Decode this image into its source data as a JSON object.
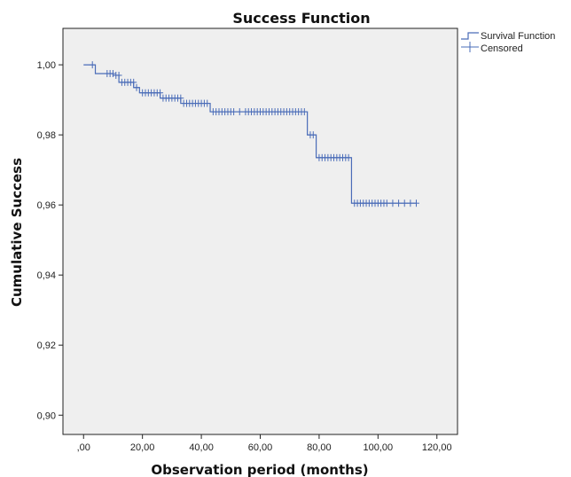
{
  "chart_data": {
    "type": "line",
    "title": "Success Function",
    "xlabel": "Observation period (months)",
    "ylabel": "Cumulative Success",
    "xlim": [
      -7,
      127
    ],
    "ylim": [
      0.8945,
      1.0104
    ],
    "x_ticks": [
      {
        "value": 0,
        "label": ",00"
      },
      {
        "value": 20,
        "label": "20,00"
      },
      {
        "value": 40,
        "label": "40,00"
      },
      {
        "value": 60,
        "label": "60,00"
      },
      {
        "value": 80,
        "label": "80,00"
      },
      {
        "value": 100,
        "label": "100,00"
      },
      {
        "value": 120,
        "label": "120,00"
      }
    ],
    "y_ticks": [
      {
        "value": 0.9,
        "label": "0,90"
      },
      {
        "value": 0.92,
        "label": "0,92"
      },
      {
        "value": 0.94,
        "label": "0,94"
      },
      {
        "value": 0.96,
        "label": "0,96"
      },
      {
        "value": 0.98,
        "label": "0,98"
      },
      {
        "value": 1.0,
        "label": "1,00"
      }
    ],
    "grid": false,
    "legend_position": "top-right",
    "colors": {
      "series": "#4a6cb8",
      "plot_bg": "#efefef",
      "axis": "#222222"
    },
    "series": [
      {
        "name": "Survival Function",
        "kind": "step",
        "x": [
          0,
          4,
          10,
          12,
          17,
          19,
          26,
          33,
          43,
          76,
          79,
          91,
          113
        ],
        "y": [
          1.0,
          0.9975,
          0.997,
          0.995,
          0.9935,
          0.992,
          0.9905,
          0.989,
          0.9866,
          0.98,
          0.9735,
          0.9605,
          0.9605
        ]
      },
      {
        "name": "Censored",
        "kind": "marker",
        "points": [
          [
            3,
            1.0
          ],
          [
            8,
            0.9975
          ],
          [
            9,
            0.9975
          ],
          [
            10,
            0.9975
          ],
          [
            11,
            0.997
          ],
          [
            12,
            0.997
          ],
          [
            13,
            0.995
          ],
          [
            14,
            0.995
          ],
          [
            15,
            0.995
          ],
          [
            16,
            0.995
          ],
          [
            17,
            0.995
          ],
          [
            18,
            0.9935
          ],
          [
            20,
            0.992
          ],
          [
            21,
            0.992
          ],
          [
            22,
            0.992
          ],
          [
            23,
            0.992
          ],
          [
            24,
            0.992
          ],
          [
            25,
            0.992
          ],
          [
            26,
            0.992
          ],
          [
            27,
            0.9905
          ],
          [
            28,
            0.9905
          ],
          [
            29,
            0.9905
          ],
          [
            30,
            0.9905
          ],
          [
            31,
            0.9905
          ],
          [
            32,
            0.9905
          ],
          [
            33,
            0.9905
          ],
          [
            34,
            0.989
          ],
          [
            35,
            0.989
          ],
          [
            36,
            0.989
          ],
          [
            37,
            0.989
          ],
          [
            38,
            0.989
          ],
          [
            39,
            0.989
          ],
          [
            40,
            0.989
          ],
          [
            41,
            0.989
          ],
          [
            42,
            0.989
          ],
          [
            44,
            0.9866
          ],
          [
            45,
            0.9866
          ],
          [
            46,
            0.9866
          ],
          [
            47,
            0.9866
          ],
          [
            48,
            0.9866
          ],
          [
            49,
            0.9866
          ],
          [
            50,
            0.9866
          ],
          [
            51,
            0.9866
          ],
          [
            53,
            0.9866
          ],
          [
            55,
            0.9866
          ],
          [
            56,
            0.9866
          ],
          [
            57,
            0.9866
          ],
          [
            58,
            0.9866
          ],
          [
            59,
            0.9866
          ],
          [
            60,
            0.9866
          ],
          [
            61,
            0.9866
          ],
          [
            62,
            0.9866
          ],
          [
            63,
            0.9866
          ],
          [
            64,
            0.9866
          ],
          [
            65,
            0.9866
          ],
          [
            66,
            0.9866
          ],
          [
            67,
            0.9866
          ],
          [
            68,
            0.9866
          ],
          [
            69,
            0.9866
          ],
          [
            70,
            0.9866
          ],
          [
            71,
            0.9866
          ],
          [
            72,
            0.9866
          ],
          [
            73,
            0.9866
          ],
          [
            74,
            0.9866
          ],
          [
            75,
            0.9866
          ],
          [
            77,
            0.98
          ],
          [
            78,
            0.98
          ],
          [
            80,
            0.9735
          ],
          [
            81,
            0.9735
          ],
          [
            82,
            0.9735
          ],
          [
            83,
            0.9735
          ],
          [
            84,
            0.9735
          ],
          [
            85,
            0.9735
          ],
          [
            86,
            0.9735
          ],
          [
            87,
            0.9735
          ],
          [
            88,
            0.9735
          ],
          [
            89,
            0.9735
          ],
          [
            90,
            0.9735
          ],
          [
            92,
            0.9605
          ],
          [
            93,
            0.9605
          ],
          [
            94,
            0.9605
          ],
          [
            95,
            0.9605
          ],
          [
            96,
            0.9605
          ],
          [
            97,
            0.9605
          ],
          [
            98,
            0.9605
          ],
          [
            99,
            0.9605
          ],
          [
            100,
            0.9605
          ],
          [
            101,
            0.9605
          ],
          [
            102,
            0.9605
          ],
          [
            103,
            0.9605
          ],
          [
            105,
            0.9605
          ],
          [
            107,
            0.9605
          ],
          [
            109,
            0.9605
          ],
          [
            111,
            0.9605
          ],
          [
            113,
            0.9605
          ]
        ]
      }
    ]
  }
}
